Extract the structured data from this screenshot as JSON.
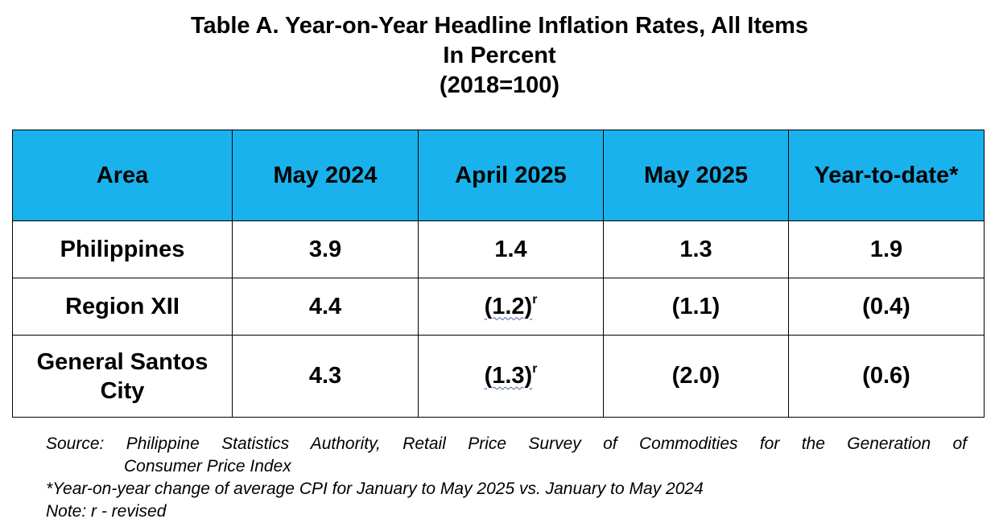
{
  "title": {
    "line1": "Table A. Year-on-Year Headline Inflation Rates, All Items",
    "line2": "In Percent",
    "line3": "(2018=100)"
  },
  "table": {
    "headers": [
      "Area",
      "May 2024",
      "April 2025",
      "May 2025",
      "Year-to-date*"
    ],
    "rows": [
      {
        "area": "Philippines",
        "may_2024": "3.9",
        "april_2025": "1.4",
        "may_2025": "1.3",
        "ytd": "1.9"
      },
      {
        "area": "Region XII",
        "may_2024": "4.4",
        "april_2025": "(1.2)",
        "april_2025_mark": "r",
        "may_2025": "(1.1)",
        "ytd": "(0.4)"
      },
      {
        "area": "General Santos City",
        "may_2024": "4.3",
        "april_2025": "(1.3)",
        "april_2025_mark": "r",
        "may_2025": "(2.0)",
        "ytd": "(0.6)"
      }
    ],
    "header_color": "#1ab2ec"
  },
  "notes": {
    "source_line1": "Source: Philippine Statistics Authority, Retail Price Survey of Commodities for the Generation of",
    "source_line2": "Consumer Price Index",
    "footnote": "*Year-on-year change of average CPI for January to May 2025 vs. January to May 2024",
    "note": "Note: r - revised"
  }
}
